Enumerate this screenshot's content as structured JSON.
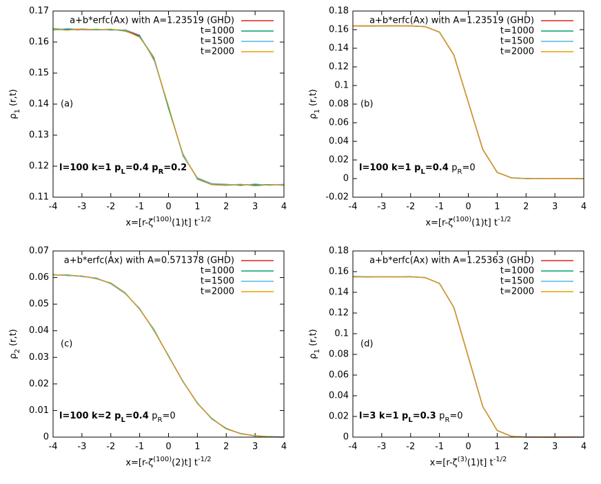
{
  "chart_data": [
    {
      "type": "line",
      "panel_label": "(a)",
      "legend": "top-right",
      "xlabel": [
        {
          "text": "x=[r-ζ"
        },
        {
          "text": "(100)",
          "sup": true
        },
        {
          "text": "(1)t] t"
        },
        {
          "text": "-1/2",
          "sup": true
        }
      ],
      "ylabel": [
        {
          "text": "ρ"
        },
        {
          "text": "1",
          "sub": true
        },
        {
          "text": " (r,t)"
        }
      ],
      "annotation": [
        {
          "text": "l=100 k=1 p",
          "bold": true
        },
        {
          "text": "L",
          "sub": true,
          "bold": true
        },
        {
          "text": "=0.4 p",
          "bold": true
        },
        {
          "text": "R",
          "sub": true,
          "bold": true
        },
        {
          "text": "=0.2",
          "bold": true
        }
      ],
      "xlim": [
        -4,
        4
      ],
      "xticks": [
        -4,
        -3,
        -2,
        -1,
        0,
        1,
        2,
        3,
        4
      ],
      "ylim": [
        0.11,
        0.17
      ],
      "yticks": [
        0.11,
        0.12,
        0.13,
        0.14,
        0.15,
        0.16,
        0.17
      ],
      "x": [
        -4,
        -3.5,
        -3,
        -2.5,
        -2,
        -1.5,
        -1,
        -0.5,
        0,
        0.5,
        1,
        1.5,
        2,
        2.5,
        3,
        3.5,
        4
      ],
      "series": [
        {
          "name": "a+b*erfc(Ax) with A=1.23519 (GHD)",
          "color": "#e51e10",
          "values": [
            0.164,
            0.164,
            0.164,
            0.164,
            0.164,
            0.1638,
            0.162,
            0.1545,
            0.139,
            0.1236,
            0.1161,
            0.1142,
            0.114,
            0.114,
            0.114,
            0.114,
            0.114
          ]
        },
        {
          "name": "t=1000",
          "color": "#009e73",
          "values": [
            0.1643,
            0.1641,
            0.1642,
            0.1639,
            0.1641,
            0.1635,
            0.1618,
            0.155,
            0.1385,
            0.124,
            0.1158,
            0.114,
            0.1138,
            0.1141,
            0.1139,
            0.1141,
            0.1138
          ]
        },
        {
          "name": "t=1500",
          "color": "#56b4e9",
          "values": [
            0.1638,
            0.1644,
            0.164,
            0.1642,
            0.1638,
            0.164,
            0.1623,
            0.154,
            0.1395,
            0.1232,
            0.1163,
            0.1144,
            0.1142,
            0.1137,
            0.1143,
            0.1138,
            0.1142
          ]
        },
        {
          "name": "t=2000",
          "color": "#e69f00",
          "values": [
            0.1641,
            0.1638,
            0.1643,
            0.164,
            0.1642,
            0.1637,
            0.1615,
            0.1548,
            0.1392,
            0.1238,
            0.116,
            0.1141,
            0.1139,
            0.1142,
            0.1136,
            0.114,
            0.1139
          ]
        }
      ]
    },
    {
      "type": "line",
      "panel_label": "(b)",
      "legend": "top-right",
      "xlabel": [
        {
          "text": "x=[r-ζ"
        },
        {
          "text": "(100)",
          "sup": true
        },
        {
          "text": "(1)t] t"
        },
        {
          "text": "-1/2",
          "sup": true
        }
      ],
      "ylabel": [
        {
          "text": "ρ"
        },
        {
          "text": "1",
          "sub": true
        },
        {
          "text": " (r,t)"
        }
      ],
      "annotation": [
        {
          "text": "l=100 k=1 p",
          "bold": true
        },
        {
          "text": "L",
          "sub": true,
          "bold": true
        },
        {
          "text": "=0.4 ",
          "bold": true
        },
        {
          "text": "p"
        },
        {
          "text": "R",
          "sub": true
        },
        {
          "text": "=0"
        }
      ],
      "xlim": [
        -4,
        4
      ],
      "xticks": [
        -4,
        -3,
        -2,
        -1,
        0,
        1,
        2,
        3,
        4
      ],
      "ylim": [
        -0.02,
        0.18
      ],
      "yticks": [
        -0.02,
        0,
        0.02,
        0.04,
        0.06,
        0.08,
        0.1,
        0.12,
        0.14,
        0.16,
        0.18
      ],
      "x": [
        -4,
        -3.5,
        -3,
        -2.5,
        -2,
        -1.5,
        -1,
        -0.5,
        0,
        0.5,
        1,
        1.5,
        2,
        2.5,
        3,
        3.5,
        4
      ],
      "series": [
        {
          "name": "a+b*erfc(Ax) with A=1.23519 (GHD)",
          "color": "#e51e10",
          "values": [
            0.164,
            0.164,
            0.164,
            0.164,
            0.164,
            0.1633,
            0.1573,
            0.1327,
            0.082,
            0.0313,
            0.0067,
            0.0007,
            0,
            0,
            0,
            0,
            0
          ]
        },
        {
          "name": "t=1000",
          "color": "#009e73",
          "values": [
            0.1641,
            0.1639,
            0.164,
            0.1642,
            0.1639,
            0.1631,
            0.1575,
            0.1325,
            0.0822,
            0.0315,
            0.0065,
            0.0008,
            0.0002,
            -0.0001,
            0.0001,
            0,
            -0.0002
          ]
        },
        {
          "name": "t=1500",
          "color": "#56b4e9",
          "values": [
            0.1639,
            0.1641,
            0.1642,
            0.1638,
            0.1641,
            0.1635,
            0.157,
            0.133,
            0.0818,
            0.031,
            0.0069,
            0.0005,
            -0.0002,
            0.0002,
            0,
            0.0001,
            0.0001
          ]
        },
        {
          "name": "t=2000",
          "color": "#e69f00",
          "values": [
            0.164,
            0.1642,
            0.1639,
            0.1641,
            0.164,
            0.1632,
            0.1574,
            0.1328,
            0.0821,
            0.0312,
            0.0066,
            0.0007,
            0.0001,
            0,
            -0.0001,
            0.0002,
            0
          ]
        }
      ]
    },
    {
      "type": "line",
      "panel_label": "(c)",
      "legend": "top-right",
      "xlabel": [
        {
          "text": "x=[r-ζ"
        },
        {
          "text": "(100)",
          "sup": true
        },
        {
          "text": "(2)t] t"
        },
        {
          "text": "-1/2",
          "sup": true
        }
      ],
      "ylabel": [
        {
          "text": "ρ"
        },
        {
          "text": "2",
          "sub": true
        },
        {
          "text": " (r,t)"
        }
      ],
      "annotation": [
        {
          "text": "l=100 k=2 p",
          "bold": true
        },
        {
          "text": "L",
          "sub": true,
          "bold": true
        },
        {
          "text": "=0.4 ",
          "bold": true
        },
        {
          "text": "p"
        },
        {
          "text": "R",
          "sub": true
        },
        {
          "text": "=0"
        }
      ],
      "xlim": [
        -4,
        4
      ],
      "xticks": [
        -4,
        -3,
        -2,
        -1,
        0,
        1,
        2,
        3,
        4
      ],
      "ylim": [
        0,
        0.07
      ],
      "yticks": [
        0,
        0.01,
        0.02,
        0.03,
        0.04,
        0.05,
        0.06,
        0.07
      ],
      "x": [
        -4,
        -3.5,
        -3,
        -2.5,
        -2,
        -1.5,
        -1,
        -0.5,
        0,
        0.5,
        1,
        1.5,
        2,
        2.5,
        3,
        3.5,
        4
      ],
      "series": [
        {
          "name": "a+b*erfc(Ax) with A=0.571378 (GHD)",
          "color": "#e51e10",
          "values": [
            0.061,
            0.0609,
            0.0605,
            0.0597,
            0.0578,
            0.0541,
            0.0482,
            0.0401,
            0.0305,
            0.0209,
            0.0128,
            0.0069,
            0.0032,
            0.0013,
            0.0005,
            0.0001,
            0
          ]
        },
        {
          "name": "t=1000",
          "color": "#009e73",
          "values": [
            0.0612,
            0.0607,
            0.0606,
            0.0595,
            0.058,
            0.0543,
            0.048,
            0.0405,
            0.0303,
            0.0211,
            0.0126,
            0.0071,
            0.0031,
            0.0014,
            0.0004,
            0.0002,
            0.0001
          ]
        },
        {
          "name": "t=1500",
          "color": "#56b4e9",
          "values": [
            0.0609,
            0.0611,
            0.0603,
            0.0599,
            0.0576,
            0.0539,
            0.0485,
            0.0398,
            0.0308,
            0.0207,
            0.013,
            0.0067,
            0.0034,
            0.0012,
            0.0006,
            0,
            0.0001
          ]
        },
        {
          "name": "t=2000",
          "color": "#e69f00",
          "values": [
            0.0611,
            0.0608,
            0.0606,
            0.0596,
            0.0579,
            0.0542,
            0.0481,
            0.0403,
            0.0304,
            0.021,
            0.0127,
            0.007,
            0.0033,
            0.0013,
            0.0005,
            0.0001,
            0
          ]
        }
      ]
    },
    {
      "type": "line",
      "panel_label": "(d)",
      "legend": "top-right",
      "xlabel": [
        {
          "text": "x=[r-ζ"
        },
        {
          "text": "(3)",
          "sup": true
        },
        {
          "text": "(1)t] t"
        },
        {
          "text": "-1/2",
          "sup": true
        }
      ],
      "ylabel": [
        {
          "text": "ρ"
        },
        {
          "text": "1",
          "sub": true
        },
        {
          "text": " (r,t)"
        }
      ],
      "annotation": [
        {
          "text": "l=3 k=1 p",
          "bold": true
        },
        {
          "text": "L",
          "sub": true,
          "bold": true
        },
        {
          "text": "=0.3 ",
          "bold": true
        },
        {
          "text": "p"
        },
        {
          "text": "R",
          "sub": true
        },
        {
          "text": "=0"
        }
      ],
      "xlim": [
        -4,
        4
      ],
      "xticks": [
        -4,
        -3,
        -2,
        -1,
        0,
        1,
        2,
        3,
        4
      ],
      "ylim": [
        0,
        0.18
      ],
      "yticks": [
        0,
        0.02,
        0.04,
        0.06,
        0.08,
        0.1,
        0.12,
        0.14,
        0.16,
        0.18
      ],
      "x": [
        -4,
        -3.5,
        -3,
        -2.5,
        -2,
        -1.5,
        -1,
        -0.5,
        0,
        0.5,
        1,
        1.5,
        2,
        2.5,
        3,
        3.5,
        4
      ],
      "series": [
        {
          "name": "a+b*erfc(Ax) with A=1.25363 (GHD)",
          "color": "#e51e10",
          "values": [
            0.155,
            0.155,
            0.155,
            0.155,
            0.155,
            0.1543,
            0.1486,
            0.1254,
            0.0775,
            0.0296,
            0.0064,
            0.0007,
            0,
            0,
            0,
            0,
            0
          ]
        },
        {
          "name": "t=1000",
          "color": "#009e73",
          "values": [
            0.1553,
            0.1548,
            0.1551,
            0.1549,
            0.1552,
            0.1541,
            0.1488,
            0.1251,
            0.0778,
            0.0298,
            0.0062,
            0.0008,
            0.0001,
            0,
            -0.0001,
            0.0001,
            0
          ]
        },
        {
          "name": "t=1500",
          "color": "#56b4e9",
          "values": [
            0.1556,
            0.1552,
            0.1549,
            0.1551,
            0.1548,
            0.1545,
            0.1483,
            0.1257,
            0.0772,
            0.0293,
            0.0066,
            0.0005,
            0.0002,
            0.0001,
            0,
            0,
            0.0001
          ]
        },
        {
          "name": "t=2000",
          "color": "#e69f00",
          "values": [
            0.1551,
            0.155,
            0.1552,
            0.1548,
            0.155,
            0.1542,
            0.1487,
            0.1253,
            0.0776,
            0.0297,
            0.0063,
            0.0007,
            0,
            0.0002,
            0.0001,
            0,
            0
          ]
        }
      ]
    }
  ]
}
